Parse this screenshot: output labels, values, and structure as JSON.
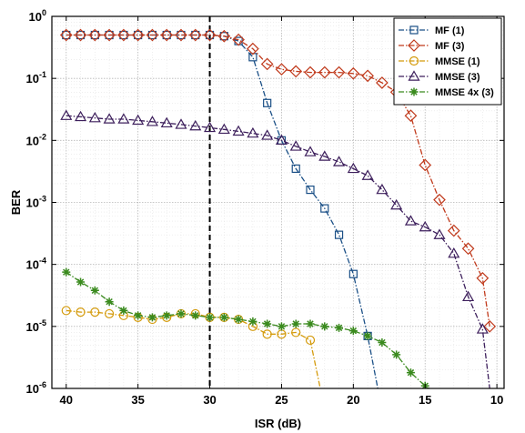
{
  "chart_data": {
    "type": "line",
    "xlabel": "ISR (dB)",
    "ylabel": "BER",
    "x_reversed": true,
    "xlim": [
      41,
      9.5
    ],
    "ylim": [
      1e-06,
      1
    ],
    "yscale": "log",
    "x_ticks": [
      40,
      35,
      30,
      25,
      20,
      15,
      10
    ],
    "x_tick_labels": [
      "40",
      "35",
      "30",
      "25",
      "20",
      "15",
      "10"
    ],
    "y_ticks": [
      1e-06,
      1e-05,
      0.0001,
      0.001,
      0.01,
      0.1,
      1
    ],
    "y_tick_labels": [
      {
        "base": "10",
        "exp": "-6"
      },
      {
        "base": "10",
        "exp": "-5"
      },
      {
        "base": "10",
        "exp": "-4"
      },
      {
        "base": "10",
        "exp": "-3"
      },
      {
        "base": "10",
        "exp": "-2"
      },
      {
        "base": "10",
        "exp": "-1"
      },
      {
        "base": "10",
        "exp": "0"
      }
    ],
    "grid": true,
    "legend_position": "top-right",
    "vertical_reference_line": {
      "x": 30,
      "style": "dashed",
      "color": "#000000"
    },
    "series": [
      {
        "name": "MF (1)",
        "color": "#1a4f86",
        "marker": "square",
        "x": [
          40,
          39,
          38,
          37,
          36,
          35,
          34,
          33,
          32,
          31,
          30,
          29,
          28,
          27,
          26,
          25,
          24,
          23,
          22,
          21,
          20,
          19,
          18.3
        ],
        "y": [
          0.5,
          0.5,
          0.5,
          0.5,
          0.5,
          0.5,
          0.5,
          0.5,
          0.5,
          0.5,
          0.5,
          0.48,
          0.4,
          0.22,
          0.04,
          0.01,
          0.0035,
          0.0016,
          0.0008,
          0.0003,
          7e-05,
          7e-06,
          1e-06
        ]
      },
      {
        "name": "MF (3)",
        "color": "#c0391b",
        "marker": "diamond",
        "x": [
          40,
          39,
          38,
          37,
          36,
          35,
          34,
          33,
          32,
          31,
          30,
          29,
          28,
          27,
          26,
          25,
          24,
          23,
          22,
          21,
          20,
          19,
          18,
          17,
          16,
          15,
          14,
          13,
          12,
          11,
          10.5
        ],
        "y": [
          0.5,
          0.5,
          0.5,
          0.5,
          0.5,
          0.5,
          0.5,
          0.5,
          0.5,
          0.5,
          0.5,
          0.48,
          0.42,
          0.3,
          0.17,
          0.14,
          0.13,
          0.125,
          0.125,
          0.125,
          0.12,
          0.11,
          0.085,
          0.06,
          0.025,
          0.004,
          0.0011,
          0.00035,
          0.00018,
          6e-05,
          1e-05
        ]
      },
      {
        "name": "MMSE (1)",
        "color": "#d49a0a",
        "marker": "circle",
        "x": [
          40,
          39,
          38,
          37,
          36,
          35,
          34,
          33,
          32,
          31,
          30,
          29,
          28,
          27,
          26,
          25,
          24,
          23,
          22.3
        ],
        "y": [
          1.8e-05,
          1.7e-05,
          1.7e-05,
          1.6e-05,
          1.5e-05,
          1.4e-05,
          1.3e-05,
          1.4e-05,
          1.6e-05,
          1.6e-05,
          1.4e-05,
          1.4e-05,
          1.3e-05,
          1e-05,
          7.5e-06,
          7.5e-06,
          8e-06,
          6e-06,
          1e-06
        ]
      },
      {
        "name": "MMSE (3)",
        "color": "#3d1f5c",
        "marker": "triangle",
        "x": [
          40,
          39,
          38,
          37,
          36,
          35,
          34,
          33,
          32,
          31,
          30,
          29,
          28,
          27,
          26,
          25,
          24,
          23,
          22,
          21,
          20,
          19,
          18,
          17,
          16,
          15,
          14,
          13,
          12,
          11,
          10.5
        ],
        "y": [
          0.025,
          0.024,
          0.023,
          0.022,
          0.022,
          0.021,
          0.02,
          0.019,
          0.018,
          0.017,
          0.016,
          0.015,
          0.014,
          0.013,
          0.012,
          0.01,
          0.008,
          0.0065,
          0.0055,
          0.0045,
          0.0035,
          0.0027,
          0.0016,
          0.0009,
          0.0005,
          0.0004,
          0.0003,
          0.00015,
          3e-05,
          9e-06,
          1e-06
        ]
      },
      {
        "name": "MMSE 4x (3)",
        "color": "#3a8a1e",
        "marker": "asterisk",
        "x": [
          40,
          39,
          38,
          37,
          36,
          35,
          34,
          33,
          32,
          31,
          30,
          29,
          28,
          27,
          26,
          25,
          24,
          23,
          22,
          21,
          20,
          19,
          18,
          17,
          16,
          15,
          14.7
        ],
        "y": [
          7.5e-05,
          5.2e-05,
          3.8e-05,
          2.5e-05,
          1.8e-05,
          1.5e-05,
          1.4e-05,
          1.5e-05,
          1.6e-05,
          1.5e-05,
          1.4e-05,
          1.4e-05,
          1.3e-05,
          1.2e-05,
          1.1e-05,
          1e-05,
          1.1e-05,
          1.1e-05,
          1e-05,
          9.5e-06,
          8.5e-06,
          7e-06,
          5.5e-06,
          3.5e-06,
          1.8e-06,
          1.1e-06,
          1e-06
        ]
      }
    ]
  }
}
